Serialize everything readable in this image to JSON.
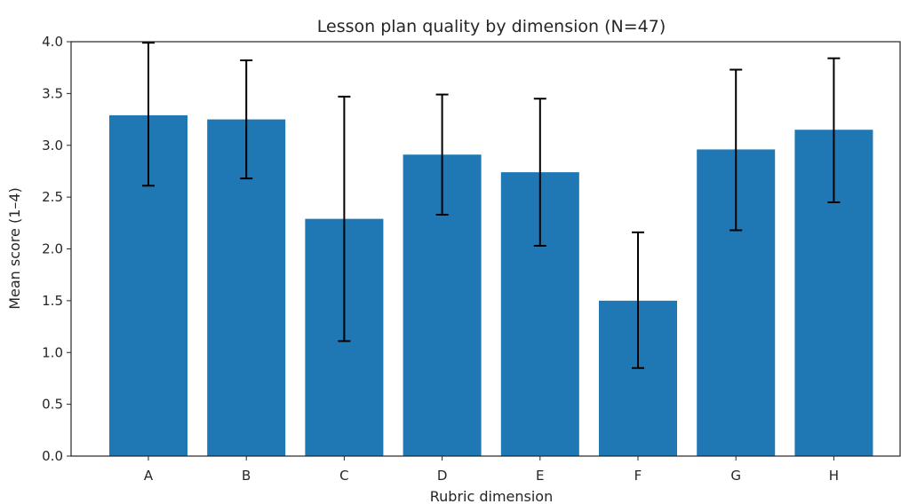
{
  "chart_data": {
    "type": "bar",
    "title": "Lesson plan quality by dimension (N=47)",
    "xlabel": "Rubric dimension",
    "ylabel": "Mean score (1–4)",
    "categories": [
      "A",
      "B",
      "C",
      "D",
      "E",
      "F",
      "G",
      "H"
    ],
    "values": [
      3.29,
      3.25,
      2.29,
      2.91,
      2.74,
      1.5,
      2.96,
      3.15
    ],
    "error_low": [
      2.61,
      2.68,
      1.11,
      2.33,
      2.03,
      0.85,
      2.18,
      2.45
    ],
    "error_high": [
      3.99,
      3.82,
      3.47,
      3.49,
      3.45,
      2.16,
      3.73,
      3.84
    ],
    "ylim": [
      0,
      4
    ],
    "yticks": [
      "0.0",
      "0.5",
      "1.0",
      "1.5",
      "2.0",
      "2.5",
      "3.0",
      "3.5",
      "4.0"
    ],
    "grid": false,
    "bar_color": "#1f77b4",
    "error_color": "#000000"
  }
}
